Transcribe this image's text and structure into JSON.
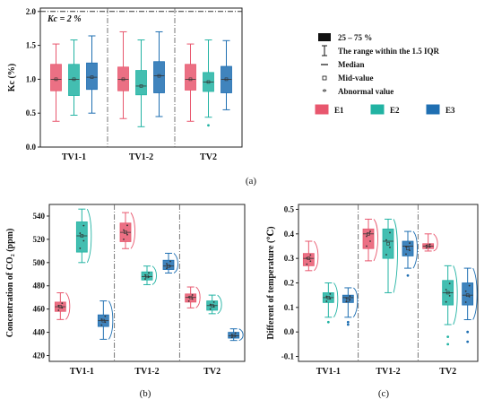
{
  "figure": {
    "panel_labels": [
      "(a)",
      "(b)",
      "(c)"
    ]
  },
  "legend": {
    "items": [
      {
        "symbol": "iqr-box-icon",
        "label": "25 – 75 %"
      },
      {
        "symbol": "whisker-icon",
        "label": "The range within the 1.5 IQR"
      },
      {
        "symbol": "median-line-icon",
        "label": "Median"
      },
      {
        "symbol": "mid-value-square-icon",
        "label": "Mid-value"
      },
      {
        "symbol": "abnormal-value-dot-icon",
        "label": "Abnormal value"
      }
    ],
    "series": [
      {
        "name": "E1",
        "color": "#e8576e"
      },
      {
        "name": "E2",
        "color": "#22b3a3"
      },
      {
        "name": "E3",
        "color": "#1f6fb2"
      }
    ]
  },
  "chart_data": [
    {
      "type": "box",
      "panel": "(a)",
      "annotation": "Kc = 2 %",
      "annotation_line_value": 2.0,
      "ylabel": "Kc (%)",
      "ylim": [
        0,
        2.05
      ],
      "yticks": [
        "0.0",
        "0.5",
        "1.0",
        "1.5",
        "2.0"
      ],
      "categories": [
        "TV1-1",
        "TV1-2",
        "TV2"
      ],
      "series": [
        {
          "name": "E1",
          "boxes": [
            {
              "min": 0.38,
              "q1": 0.83,
              "median": 1.0,
              "q3": 1.22,
              "max": 1.52,
              "mid": 1.0,
              "outliers": []
            },
            {
              "min": 0.42,
              "q1": 0.83,
              "median": 1.0,
              "q3": 1.18,
              "max": 1.7,
              "mid": 1.0,
              "outliers": []
            },
            {
              "min": 0.38,
              "q1": 0.84,
              "median": 1.0,
              "q3": 1.22,
              "max": 1.52,
              "mid": 1.0,
              "outliers": []
            }
          ]
        },
        {
          "name": "E2",
          "boxes": [
            {
              "min": 0.47,
              "q1": 0.76,
              "median": 1.0,
              "q3": 1.22,
              "max": 1.58,
              "mid": 1.0,
              "outliers": []
            },
            {
              "min": 0.3,
              "q1": 0.77,
              "median": 0.9,
              "q3": 1.13,
              "max": 1.58,
              "mid": 0.9,
              "outliers": []
            },
            {
              "min": 0.44,
              "q1": 0.82,
              "median": 0.96,
              "q3": 1.1,
              "max": 1.58,
              "mid": 0.96,
              "outliers": [
                0.32
              ]
            }
          ]
        },
        {
          "name": "E3",
          "boxes": [
            {
              "min": 0.5,
              "q1": 0.85,
              "median": 1.03,
              "q3": 1.24,
              "max": 1.64,
              "mid": 1.03,
              "outliers": []
            },
            {
              "min": 0.45,
              "q1": 0.8,
              "median": 1.05,
              "q3": 1.26,
              "max": 1.7,
              "mid": 1.05,
              "outliers": []
            },
            {
              "min": 0.55,
              "q1": 0.8,
              "median": 1.0,
              "q3": 1.19,
              "max": 1.57,
              "mid": 1.0,
              "outliers": []
            }
          ]
        }
      ]
    },
    {
      "type": "box",
      "panel": "(b)",
      "ylabel": "Concentration of CO₂ (ppm)",
      "ylim": [
        415,
        550
      ],
      "yticks": [
        "420",
        "440",
        "460",
        "480",
        "500",
        "520",
        "540"
      ],
      "categories": [
        "TV1-1",
        "TV1-2",
        "TV2"
      ],
      "series": [
        {
          "name": "E1",
          "boxes": [
            {
              "min": 451,
              "q1": 458,
              "median": 462,
              "q3": 466,
              "max": 474,
              "mid": 462,
              "outliers": []
            },
            {
              "min": 512,
              "q1": 518,
              "median": 526,
              "q3": 534,
              "max": 543,
              "mid": 526,
              "outliers": []
            },
            {
              "min": 461,
              "q1": 466,
              "median": 470,
              "q3": 473,
              "max": 479,
              "mid": 470,
              "outliers": []
            }
          ]
        },
        {
          "name": "E2",
          "boxes": [
            {
              "min": 500,
              "q1": 509,
              "median": 523,
              "q3": 535,
              "max": 546,
              "mid": 523,
              "outliers": []
            },
            {
              "min": 481,
              "q1": 485,
              "median": 488,
              "q3": 492,
              "max": 497,
              "mid": 488,
              "outliers": []
            },
            {
              "min": 456,
              "q1": 459,
              "median": 463,
              "q3": 467,
              "max": 472,
              "mid": 463,
              "outliers": []
            }
          ]
        },
        {
          "name": "E3",
          "boxes": [
            {
              "min": 434,
              "q1": 445,
              "median": 450,
              "q3": 455,
              "max": 467,
              "mid": 450,
              "outliers": []
            },
            {
              "min": 491,
              "q1": 494,
              "median": 497,
              "q3": 502,
              "max": 508,
              "mid": 497,
              "outliers": []
            },
            {
              "min": 433,
              "q1": 435,
              "median": 437,
              "q3": 440,
              "max": 443,
              "mid": 437,
              "outliers": []
            }
          ]
        }
      ]
    },
    {
      "type": "box",
      "panel": "(c)",
      "ylabel": "Different of temperature (℃)",
      "ylim": [
        -0.12,
        0.52
      ],
      "yticks": [
        "-0.1",
        "0.0",
        "0.1",
        "0.2",
        "0.3",
        "0.4",
        "0.5"
      ],
      "categories": [
        "TV1-1",
        "TV1-2",
        "TV2"
      ],
      "series": [
        {
          "name": "E1",
          "boxes": [
            {
              "min": 0.25,
              "q1": 0.27,
              "median": 0.3,
              "q3": 0.32,
              "max": 0.37,
              "mid": 0.3,
              "outliers": []
            },
            {
              "min": 0.29,
              "q1": 0.34,
              "median": 0.4,
              "q3": 0.42,
              "max": 0.46,
              "mid": 0.4,
              "outliers": []
            },
            {
              "min": 0.33,
              "q1": 0.34,
              "median": 0.35,
              "q3": 0.36,
              "max": 0.4,
              "mid": 0.35,
              "outliers": []
            }
          ]
        },
        {
          "name": "E2",
          "boxes": [
            {
              "min": 0.06,
              "q1": 0.12,
              "median": 0.14,
              "q3": 0.16,
              "max": 0.2,
              "mid": 0.14,
              "outliers": [
                0.04
              ]
            },
            {
              "min": 0.16,
              "q1": 0.3,
              "median": 0.37,
              "q3": 0.42,
              "max": 0.46,
              "mid": 0.36,
              "outliers": []
            },
            {
              "min": 0.03,
              "q1": 0.11,
              "median": 0.16,
              "q3": 0.21,
              "max": 0.27,
              "mid": 0.16,
              "outliers": [
                -0.02,
                -0.05
              ]
            }
          ]
        },
        {
          "name": "E3",
          "boxes": [
            {
              "min": 0.06,
              "q1": 0.12,
              "median": 0.14,
              "q3": 0.15,
              "max": 0.18,
              "mid": 0.13,
              "outliers": [
                0.03,
                0.04
              ]
            },
            {
              "min": 0.26,
              "q1": 0.31,
              "median": 0.35,
              "q3": 0.37,
              "max": 0.41,
              "mid": 0.34,
              "outliers": [
                0.23
              ]
            },
            {
              "min": 0.05,
              "q1": 0.11,
              "median": 0.15,
              "q3": 0.2,
              "max": 0.26,
              "mid": 0.15,
              "outliers": [
                0.0,
                -0.04
              ]
            }
          ]
        }
      ]
    }
  ]
}
